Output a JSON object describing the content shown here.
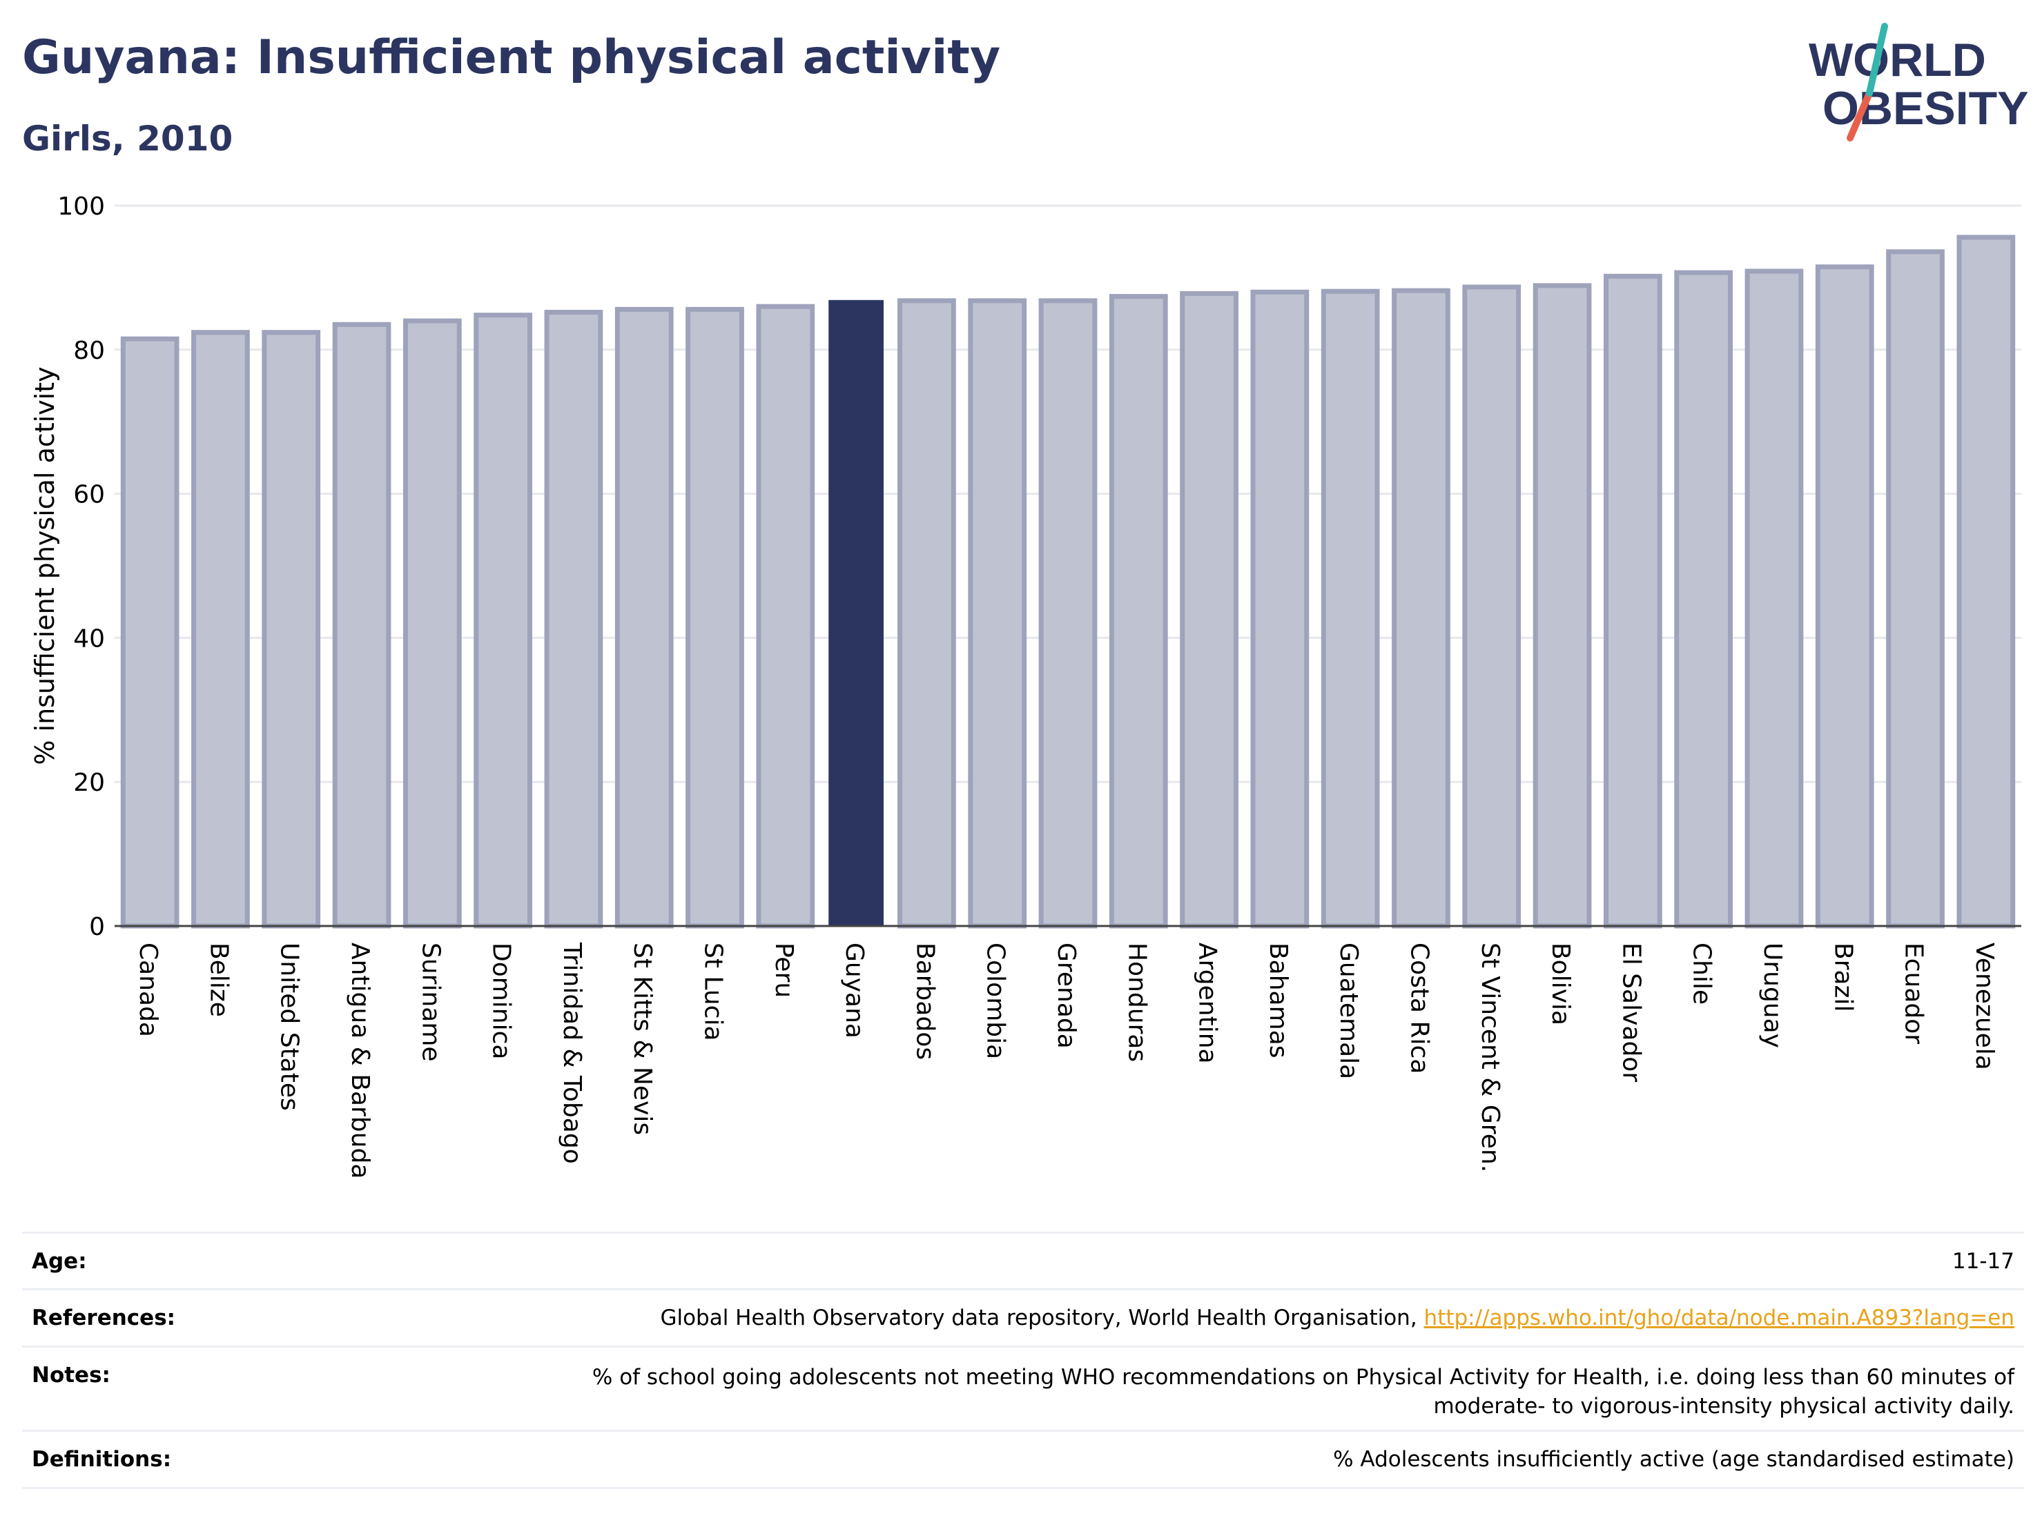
{
  "header": {
    "title": "Guyana: Insufficient physical activity",
    "subtitle": "Girls, 2010"
  },
  "logo": {
    "line1": "WORLD",
    "line2": "OBESITY",
    "accent_teal": "#35b5ad",
    "accent_red": "#e8604c"
  },
  "colors": {
    "highlight": "#2b3560",
    "bar": "#bfc2d0",
    "bar_border": "#9ea3bb",
    "text_dark": "#2b3560"
  },
  "chart_data": {
    "type": "bar",
    "ylabel": "% insufficient physical activity",
    "ylim": [
      0,
      100
    ],
    "yticks": [
      0,
      20,
      40,
      60,
      80,
      100
    ],
    "grid": true,
    "highlight": "Guyana",
    "categories": [
      "Canada",
      "Belize",
      "United States",
      "Antigua & Barbuda",
      "Suriname",
      "Dominica",
      "Trinidad & Tobago",
      "St Kitts & Nevis",
      "St Lucia",
      "Peru",
      "Guyana",
      "Barbados",
      "Colombia",
      "Grenada",
      "Honduras",
      "Argentina",
      "Bahamas",
      "Guatemala",
      "Costa Rica",
      "St Vincent & Gren.",
      "Bolivia",
      "El Salvador",
      "Chile",
      "Uruguay",
      "Brazil",
      "Ecuador",
      "Venezuela"
    ],
    "values": [
      81.5,
      82.4,
      82.4,
      83.5,
      84.0,
      84.8,
      85.2,
      85.6,
      85.6,
      86.0,
      86.8,
      86.8,
      86.8,
      86.8,
      87.4,
      87.8,
      88.0,
      88.1,
      88.2,
      88.7,
      88.9,
      90.2,
      90.7,
      90.9,
      91.5,
      93.6,
      95.6
    ]
  },
  "meta": {
    "age_label": "Age:",
    "age_value": "11-17",
    "references_label": "References:",
    "references_text": "Global Health Observatory data repository, World Health Organisation, ",
    "references_link": "http://apps.who.int/gho/data/node.main.A893?lang=en",
    "notes_label": "Notes:",
    "notes_line1": "% of school going adolescents not meeting WHO recommendations on Physical Activity for Health, i.e. doing less than 60 minutes of",
    "notes_line2": "moderate- to vigorous-intensity physical activity daily.",
    "definitions_label": "Definitions:",
    "definitions_value": "% Adolescents insufficiently active (age standardised estimate)"
  }
}
